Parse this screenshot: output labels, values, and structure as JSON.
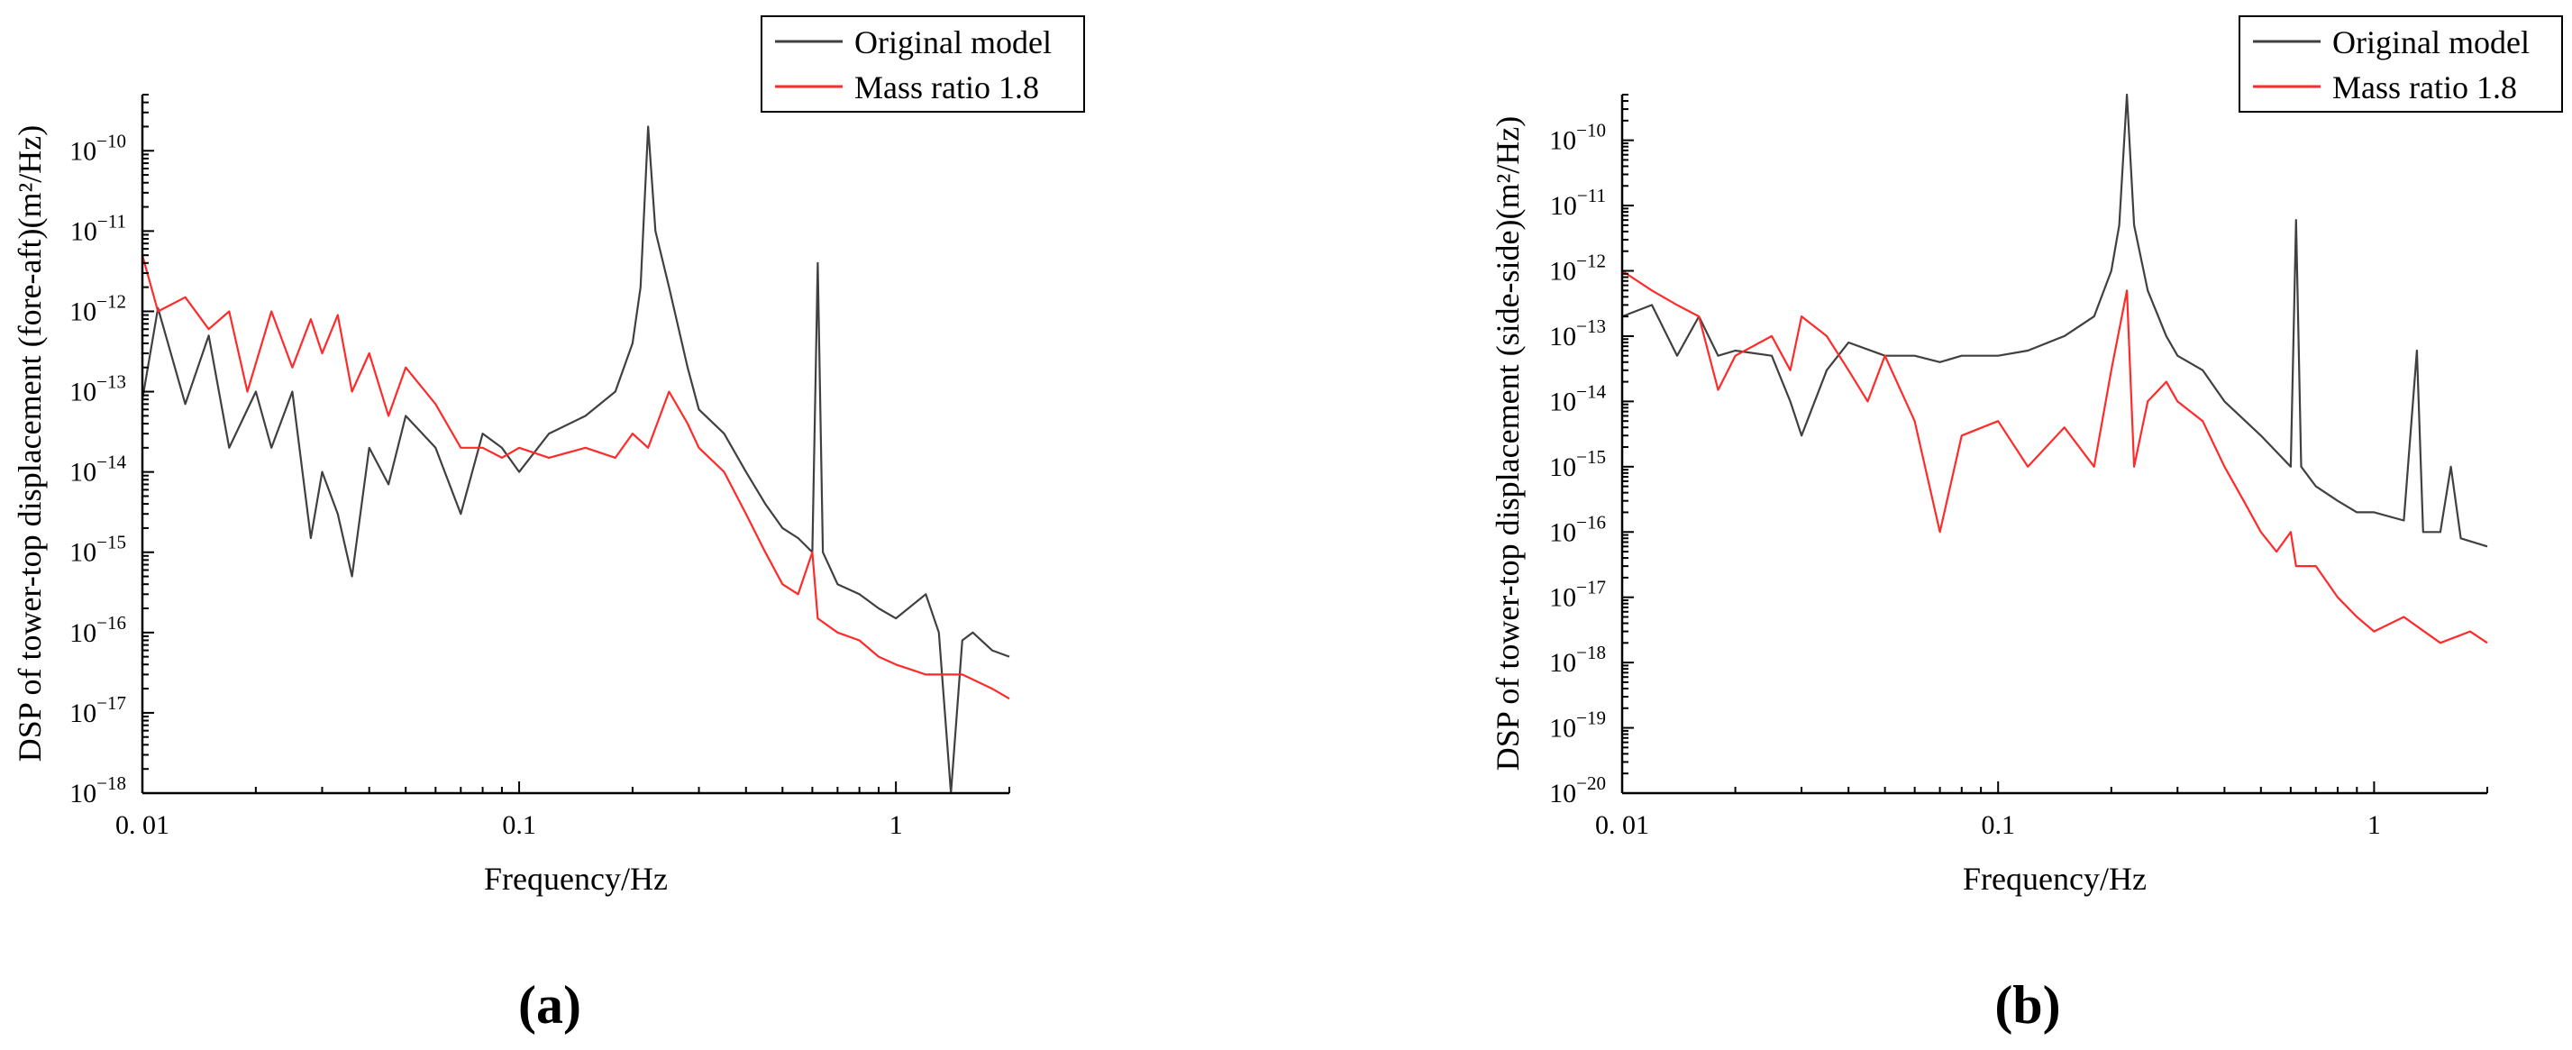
{
  "colors": {
    "original": "#404040",
    "mass": "#ff2a2a",
    "axis": "#000000",
    "legend_border": "#000000"
  },
  "chart_data": [
    {
      "type": "line",
      "panel_label": "(a)",
      "xlabel": "Frequency/Hz",
      "ylabel": "DSP of tower-top displacement (fore-aft)(m²/Hz)",
      "xscale": "log",
      "yscale": "log",
      "xlim": [
        0.01,
        2.0
      ],
      "ylim": [
        1e-18,
        5e-10
      ],
      "x_tick_labels": [
        "0. 01",
        "0.1",
        "1"
      ],
      "y_tick_exponents": [
        "−18",
        "−17",
        "−16",
        "−15",
        "−14",
        "−13",
        "−12",
        "−11",
        "−10"
      ],
      "y_tick_base": "10",
      "grid": false,
      "legend_position": "top-right",
      "series": [
        {
          "name": "Original model",
          "color_key": "original",
          "points": [
            [
              0.01,
              8e-14
            ],
            [
              0.011,
              1.1e-12
            ],
            [
              0.013,
              7e-14
            ],
            [
              0.015,
              5e-13
            ],
            [
              0.017,
              2e-14
            ],
            [
              0.02,
              1e-13
            ],
            [
              0.022,
              2e-14
            ],
            [
              0.025,
              1e-13
            ],
            [
              0.028,
              1.5e-15
            ],
            [
              0.03,
              1e-14
            ],
            [
              0.033,
              3e-15
            ],
            [
              0.036,
              5e-16
            ],
            [
              0.04,
              2e-14
            ],
            [
              0.045,
              7e-15
            ],
            [
              0.05,
              5e-14
            ],
            [
              0.06,
              2e-14
            ],
            [
              0.07,
              3e-15
            ],
            [
              0.08,
              3e-14
            ],
            [
              0.09,
              2e-14
            ],
            [
              0.1,
              1e-14
            ],
            [
              0.12,
              3e-14
            ],
            [
              0.15,
              5e-14
            ],
            [
              0.18,
              1e-13
            ],
            [
              0.2,
              4e-13
            ],
            [
              0.21,
              2e-12
            ],
            [
              0.22,
              2e-10
            ],
            [
              0.23,
              1e-11
            ],
            [
              0.25,
              2e-12
            ],
            [
              0.28,
              2e-13
            ],
            [
              0.3,
              6e-14
            ],
            [
              0.35,
              3e-14
            ],
            [
              0.4,
              1e-14
            ],
            [
              0.45,
              4e-15
            ],
            [
              0.5,
              2e-15
            ],
            [
              0.55,
              1.5e-15
            ],
            [
              0.6,
              1e-15
            ],
            [
              0.62,
              4e-12
            ],
            [
              0.64,
              1e-15
            ],
            [
              0.7,
              4e-16
            ],
            [
              0.8,
              3e-16
            ],
            [
              0.9,
              2e-16
            ],
            [
              1.0,
              1.5e-16
            ],
            [
              1.2,
              3e-16
            ],
            [
              1.3,
              1e-16
            ],
            [
              1.4,
              1e-18
            ],
            [
              1.5,
              8e-17
            ],
            [
              1.6,
              1e-16
            ],
            [
              1.8,
              6e-17
            ],
            [
              2.0,
              5e-17
            ]
          ]
        },
        {
          "name": "Mass ratio 1.8",
          "color_key": "mass",
          "points": [
            [
              0.01,
              5e-12
            ],
            [
              0.011,
              1e-12
            ],
            [
              0.013,
              1.5e-12
            ],
            [
              0.015,
              6e-13
            ],
            [
              0.017,
              1e-12
            ],
            [
              0.019,
              1e-13
            ],
            [
              0.022,
              1e-12
            ],
            [
              0.025,
              2e-13
            ],
            [
              0.028,
              8e-13
            ],
            [
              0.03,
              3e-13
            ],
            [
              0.033,
              9e-13
            ],
            [
              0.036,
              1e-13
            ],
            [
              0.04,
              3e-13
            ],
            [
              0.045,
              5e-14
            ],
            [
              0.05,
              2e-13
            ],
            [
              0.06,
              7e-14
            ],
            [
              0.07,
              2e-14
            ],
            [
              0.08,
              2e-14
            ],
            [
              0.09,
              1.5e-14
            ],
            [
              0.1,
              2e-14
            ],
            [
              0.12,
              1.5e-14
            ],
            [
              0.15,
              2e-14
            ],
            [
              0.18,
              1.5e-14
            ],
            [
              0.2,
              3e-14
            ],
            [
              0.22,
              2e-14
            ],
            [
              0.25,
              1e-13
            ],
            [
              0.28,
              4e-14
            ],
            [
              0.3,
              2e-14
            ],
            [
              0.35,
              1e-14
            ],
            [
              0.4,
              3e-15
            ],
            [
              0.45,
              1e-15
            ],
            [
              0.5,
              4e-16
            ],
            [
              0.55,
              3e-16
            ],
            [
              0.6,
              1e-15
            ],
            [
              0.62,
              1.5e-16
            ],
            [
              0.7,
              1e-16
            ],
            [
              0.8,
              8e-17
            ],
            [
              0.9,
              5e-17
            ],
            [
              1.0,
              4e-17
            ],
            [
              1.2,
              3e-17
            ],
            [
              1.5,
              3e-17
            ],
            [
              1.8,
              2e-17
            ],
            [
              2.0,
              1.5e-17
            ]
          ]
        }
      ]
    },
    {
      "type": "line",
      "panel_label": "(b)",
      "xlabel": "Frequency/Hz",
      "ylabel": "DSP of tower-top displacement (side-side)(m²/Hz)",
      "xscale": "log",
      "yscale": "log",
      "xlim": [
        0.01,
        2.0
      ],
      "ylim": [
        1e-20,
        5e-10
      ],
      "x_tick_labels": [
        "0. 01",
        "0.1",
        "1"
      ],
      "y_tick_exponents": [
        "−20",
        "−19",
        "−18",
        "−17",
        "−16",
        "−15",
        "−14",
        "−13",
        "−12",
        "−11",
        "−10"
      ],
      "y_tick_base": "10",
      "grid": false,
      "legend_position": "top-right",
      "series": [
        {
          "name": "Original model",
          "color_key": "original",
          "points": [
            [
              0.01,
              2e-13
            ],
            [
              0.012,
              3e-13
            ],
            [
              0.014,
              5e-14
            ],
            [
              0.016,
              2e-13
            ],
            [
              0.018,
              5e-14
            ],
            [
              0.02,
              6e-14
            ],
            [
              0.025,
              5e-14
            ],
            [
              0.028,
              1e-14
            ],
            [
              0.03,
              3e-15
            ],
            [
              0.035,
              3e-14
            ],
            [
              0.04,
              8e-14
            ],
            [
              0.05,
              5e-14
            ],
            [
              0.06,
              5e-14
            ],
            [
              0.07,
              4e-14
            ],
            [
              0.08,
              5e-14
            ],
            [
              0.1,
              5e-14
            ],
            [
              0.12,
              6e-14
            ],
            [
              0.15,
              1e-13
            ],
            [
              0.18,
              2e-13
            ],
            [
              0.2,
              1e-12
            ],
            [
              0.21,
              5e-12
            ],
            [
              0.22,
              5e-10
            ],
            [
              0.23,
              5e-12
            ],
            [
              0.25,
              5e-13
            ],
            [
              0.28,
              1e-13
            ],
            [
              0.3,
              5e-14
            ],
            [
              0.35,
              3e-14
            ],
            [
              0.4,
              1e-14
            ],
            [
              0.5,
              3e-15
            ],
            [
              0.6,
              1e-15
            ],
            [
              0.62,
              6e-12
            ],
            [
              0.64,
              1e-15
            ],
            [
              0.7,
              5e-16
            ],
            [
              0.8,
              3e-16
            ],
            [
              0.9,
              2e-16
            ],
            [
              1.0,
              2e-16
            ],
            [
              1.2,
              1.5e-16
            ],
            [
              1.3,
              6e-14
            ],
            [
              1.35,
              1e-16
            ],
            [
              1.5,
              1e-16
            ],
            [
              1.6,
              1e-15
            ],
            [
              1.7,
              8e-17
            ],
            [
              2.0,
              6e-17
            ]
          ]
        },
        {
          "name": "Mass ratio 1.8",
          "color_key": "mass",
          "points": [
            [
              0.01,
              1e-12
            ],
            [
              0.012,
              5e-13
            ],
            [
              0.014,
              3e-13
            ],
            [
              0.016,
              2e-13
            ],
            [
              0.018,
              1.5e-14
            ],
            [
              0.02,
              5e-14
            ],
            [
              0.025,
              1e-13
            ],
            [
              0.028,
              3e-14
            ],
            [
              0.03,
              2e-13
            ],
            [
              0.035,
              1e-13
            ],
            [
              0.04,
              3e-14
            ],
            [
              0.045,
              1e-14
            ],
            [
              0.05,
              5e-14
            ],
            [
              0.06,
              5e-15
            ],
            [
              0.07,
              1e-16
            ],
            [
              0.08,
              3e-15
            ],
            [
              0.1,
              5e-15
            ],
            [
              0.12,
              1e-15
            ],
            [
              0.15,
              4e-15
            ],
            [
              0.18,
              1e-15
            ],
            [
              0.2,
              3e-14
            ],
            [
              0.22,
              5e-13
            ],
            [
              0.23,
              1e-15
            ],
            [
              0.25,
              1e-14
            ],
            [
              0.28,
              2e-14
            ],
            [
              0.3,
              1e-14
            ],
            [
              0.35,
              5e-15
            ],
            [
              0.4,
              1e-15
            ],
            [
              0.45,
              3e-16
            ],
            [
              0.5,
              1e-16
            ],
            [
              0.55,
              5e-17
            ],
            [
              0.6,
              1e-16
            ],
            [
              0.62,
              3e-17
            ],
            [
              0.7,
              3e-17
            ],
            [
              0.8,
              1e-17
            ],
            [
              0.9,
              5e-18
            ],
            [
              1.0,
              3e-18
            ],
            [
              1.2,
              5e-18
            ],
            [
              1.5,
              2e-18
            ],
            [
              1.8,
              3e-18
            ],
            [
              2.0,
              2e-18
            ]
          ]
        }
      ]
    }
  ]
}
